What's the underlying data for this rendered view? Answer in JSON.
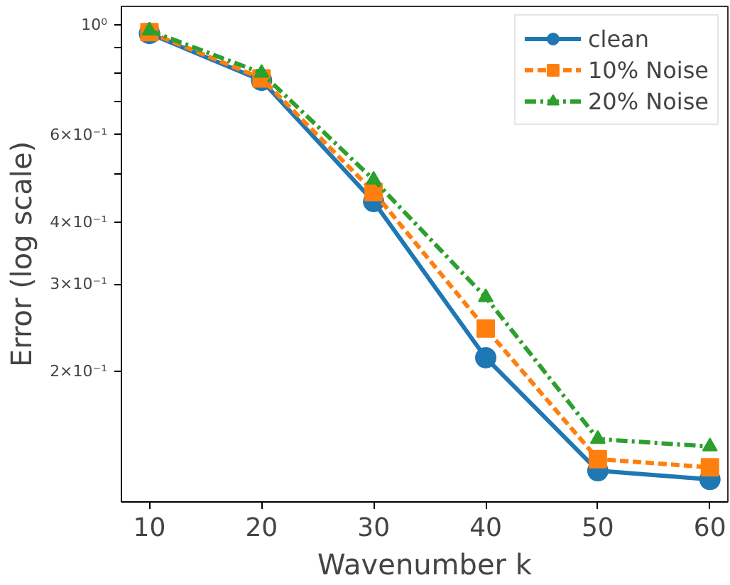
{
  "chart_data": {
    "type": "line",
    "xlabel": "Wavenumber k",
    "ylabel": "Error (log scale)",
    "log": "y",
    "x": [
      10,
      20,
      30,
      40,
      50,
      60
    ],
    "xlim": [
      7.5,
      61.6
    ],
    "xticks": [
      10,
      20,
      30,
      40,
      50,
      60
    ],
    "ylim": [
      0.109,
      1.09
    ],
    "yticks": [
      {
        "value": 1,
        "label": "10⁰"
      },
      {
        "value": 0.9,
        "label": null
      },
      {
        "value": 0.8,
        "label": null
      },
      {
        "value": 0.7,
        "label": null
      },
      {
        "value": 0.6,
        "label": "6×10⁻¹"
      },
      {
        "value": 0.5,
        "label": null
      },
      {
        "value": 0.4,
        "label": "4×10⁻¹"
      },
      {
        "value": 0.3,
        "label": "3×10⁻¹"
      },
      {
        "value": 0.2,
        "label": "2×10⁻¹"
      }
    ],
    "grid": false,
    "legend": "top right",
    "series": [
      {
        "name": "clean",
        "color": "#1f77b4",
        "marker": "circle",
        "line_style": "solid",
        "values": [
          0.961,
          0.773,
          0.44,
          0.213,
          0.126,
          0.121
        ]
      },
      {
        "name": "10% Noise",
        "color": "#ff7f0e",
        "marker": "square",
        "line_style": "dashed",
        "values": [
          0.967,
          0.78,
          0.46,
          0.244,
          0.133,
          0.128
        ]
      },
      {
        "name": "20% Noise",
        "color": "#2ca02c",
        "marker": "triangle",
        "line_style": "dashdot",
        "values": [
          0.974,
          0.8,
          0.487,
          0.282,
          0.146,
          0.141
        ]
      }
    ]
  }
}
